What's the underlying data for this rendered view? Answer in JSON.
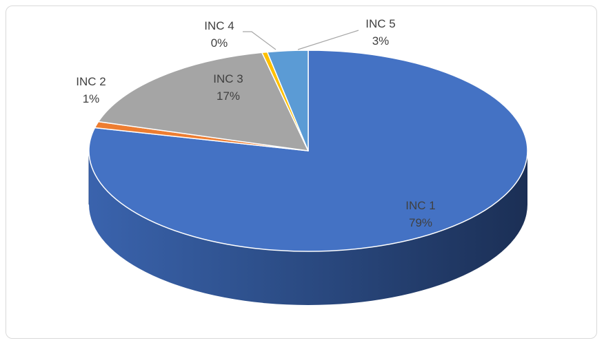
{
  "chart_data": {
    "type": "pie",
    "style": "3d",
    "title": "",
    "legend": "none",
    "slices": [
      {
        "label": "INC 1",
        "pct_label": "79%",
        "value": 79,
        "color": "#4472c4"
      },
      {
        "label": "INC 2",
        "pct_label": "1%",
        "value": 1,
        "color": "#ed7d31"
      },
      {
        "label": "INC 3",
        "pct_label": "17%",
        "value": 17,
        "color": "#a5a5a5"
      },
      {
        "label": "INC 4",
        "pct_label": "0%",
        "value": 0.4,
        "color": "#ffc000"
      },
      {
        "label": "INC 5",
        "pct_label": "3%",
        "value": 3,
        "color": "#5b9bd5"
      }
    ]
  }
}
